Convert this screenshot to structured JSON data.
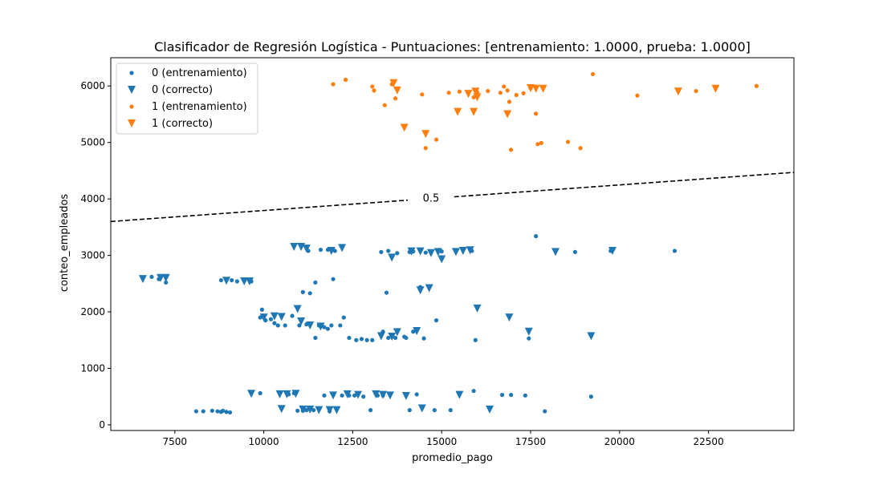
{
  "chart_data": {
    "type": "scatter",
    "title": "Clasificador de Regresión Logística - Puntuaciones: [entrenamiento: 1.0000, prueba: 1.0000]",
    "xlabel": "promedio_pago",
    "ylabel": "conteo_empleados",
    "xlim": [
      5700,
      24900
    ],
    "ylim": [
      -100,
      6500
    ],
    "xticks": [
      7500,
      10000,
      12500,
      15000,
      17500,
      20000,
      22500
    ],
    "yticks": [
      0,
      1000,
      2000,
      3000,
      4000,
      5000,
      6000
    ],
    "decision_boundary": {
      "label": "0.5",
      "points": [
        [
          5700,
          3600
        ],
        [
          24900,
          4470
        ]
      ]
    },
    "legend_position": "upper-left",
    "colors": {
      "class0": "#1f77b4",
      "class1": "#ff7f0e",
      "boundary": "#000000"
    },
    "series": [
      {
        "name": "0 (entrenamiento)",
        "marker": "dot",
        "color": "#1f77b4",
        "points": [
          [
            8100,
            240
          ],
          [
            8300,
            240
          ],
          [
            8550,
            250
          ],
          [
            8700,
            240
          ],
          [
            8800,
            230
          ],
          [
            8850,
            250
          ],
          [
            8950,
            230
          ],
          [
            9050,
            220
          ],
          [
            9900,
            560
          ],
          [
            10700,
            540
          ],
          [
            10850,
            560
          ],
          [
            10950,
            250
          ],
          [
            11100,
            250
          ],
          [
            11200,
            260
          ],
          [
            11400,
            260
          ],
          [
            11700,
            520
          ],
          [
            11850,
            240
          ],
          [
            12200,
            520
          ],
          [
            12400,
            520
          ],
          [
            12550,
            520
          ],
          [
            12800,
            500
          ],
          [
            13000,
            260
          ],
          [
            13200,
            520
          ],
          [
            13350,
            520
          ],
          [
            14100,
            260
          ],
          [
            14300,
            540
          ],
          [
            14800,
            260
          ],
          [
            15250,
            260
          ],
          [
            15900,
            600
          ],
          [
            16700,
            530
          ],
          [
            16950,
            530
          ],
          [
            17350,
            520
          ],
          [
            17900,
            240
          ],
          [
            19200,
            500
          ],
          [
            9900,
            1900
          ],
          [
            9950,
            2040
          ],
          [
            10050,
            1850
          ],
          [
            10200,
            1870
          ],
          [
            10300,
            1800
          ],
          [
            10400,
            1760
          ],
          [
            10600,
            1760
          ],
          [
            10800,
            1930
          ],
          [
            11000,
            1760
          ],
          [
            11200,
            1780
          ],
          [
            11450,
            1540
          ],
          [
            11550,
            1760
          ],
          [
            11700,
            1730
          ],
          [
            11800,
            1700
          ],
          [
            11900,
            1760
          ],
          [
            12150,
            1760
          ],
          [
            12250,
            1900
          ],
          [
            12400,
            1540
          ],
          [
            12600,
            1500
          ],
          [
            12750,
            1520
          ],
          [
            12900,
            1500
          ],
          [
            13050,
            1500
          ],
          [
            13350,
            1650
          ],
          [
            13500,
            1540
          ],
          [
            13700,
            1540
          ],
          [
            13950,
            1560
          ],
          [
            14000,
            1540
          ],
          [
            14200,
            1650
          ],
          [
            14500,
            1530
          ],
          [
            14850,
            1850
          ],
          [
            15950,
            1500
          ],
          [
            17450,
            1530
          ],
          [
            11100,
            2350
          ],
          [
            11300,
            2330
          ],
          [
            11450,
            2520
          ],
          [
            11950,
            2580
          ],
          [
            13450,
            2340
          ],
          [
            14400,
            2440
          ],
          [
            6850,
            2620
          ],
          [
            7050,
            2580
          ],
          [
            7250,
            2520
          ],
          [
            8800,
            2560
          ],
          [
            9100,
            2560
          ],
          [
            9250,
            2540
          ],
          [
            9650,
            2540
          ],
          [
            11250,
            3080
          ],
          [
            11600,
            3100
          ],
          [
            11800,
            3100
          ],
          [
            12000,
            3080
          ],
          [
            13300,
            3060
          ],
          [
            13500,
            3080
          ],
          [
            13750,
            3040
          ],
          [
            14100,
            3060
          ],
          [
            14200,
            3070
          ],
          [
            14550,
            3050
          ],
          [
            15000,
            3070
          ],
          [
            15850,
            3080
          ],
          [
            17650,
            3340
          ],
          [
            18750,
            3060
          ],
          [
            19750,
            3080
          ],
          [
            21550,
            3080
          ]
        ]
      },
      {
        "name": "0 (correcto)",
        "marker": "triangle",
        "color": "#1f77b4",
        "points": [
          [
            6600,
            2580
          ],
          [
            7100,
            2600
          ],
          [
            7250,
            2600
          ],
          [
            8950,
            2550
          ],
          [
            9450,
            2540
          ],
          [
            9600,
            2540
          ],
          [
            10850,
            3150
          ],
          [
            11050,
            3150
          ],
          [
            11200,
            3120
          ],
          [
            11900,
            3080
          ],
          [
            12200,
            3130
          ],
          [
            13600,
            2960
          ],
          [
            14150,
            3070
          ],
          [
            14400,
            3070
          ],
          [
            14700,
            3040
          ],
          [
            14900,
            3060
          ],
          [
            15000,
            2930
          ],
          [
            15400,
            3060
          ],
          [
            15600,
            3080
          ],
          [
            15800,
            3090
          ],
          [
            18200,
            3060
          ],
          [
            19800,
            3080
          ],
          [
            14400,
            2380
          ],
          [
            14650,
            2420
          ],
          [
            16000,
            2060
          ],
          [
            16900,
            1900
          ],
          [
            17450,
            1650
          ],
          [
            19200,
            1570
          ],
          [
            10000,
            1900
          ],
          [
            10300,
            1920
          ],
          [
            10500,
            1910
          ],
          [
            10950,
            2050
          ],
          [
            11050,
            1830
          ],
          [
            11300,
            1760
          ],
          [
            11600,
            1740
          ],
          [
            13300,
            1570
          ],
          [
            13600,
            1560
          ],
          [
            13750,
            1640
          ],
          [
            14300,
            1660
          ],
          [
            9650,
            550
          ],
          [
            10450,
            540
          ],
          [
            10650,
            540
          ],
          [
            10900,
            550
          ],
          [
            11950,
            520
          ],
          [
            12350,
            540
          ],
          [
            12650,
            530
          ],
          [
            13150,
            540
          ],
          [
            13350,
            530
          ],
          [
            13550,
            520
          ],
          [
            14000,
            510
          ],
          [
            15500,
            530
          ],
          [
            10500,
            280
          ],
          [
            11100,
            270
          ],
          [
            11300,
            270
          ],
          [
            11550,
            260
          ],
          [
            11850,
            260
          ],
          [
            12050,
            260
          ],
          [
            14450,
            290
          ],
          [
            16350,
            270
          ]
        ]
      },
      {
        "name": "1 (entrenamiento)",
        "marker": "dot",
        "color": "#ff7f0e",
        "points": [
          [
            11950,
            6030
          ],
          [
            12300,
            6110
          ],
          [
            13050,
            5990
          ],
          [
            13100,
            5920
          ],
          [
            13400,
            5660
          ],
          [
            13600,
            6030
          ],
          [
            13700,
            5780
          ],
          [
            14450,
            5850
          ],
          [
            14550,
            4900
          ],
          [
            14850,
            5050
          ],
          [
            15200,
            5880
          ],
          [
            15500,
            5900
          ],
          [
            15900,
            5800
          ],
          [
            16000,
            5890
          ],
          [
            16300,
            5910
          ],
          [
            16650,
            5880
          ],
          [
            16750,
            5990
          ],
          [
            16900,
            5720
          ],
          [
            17100,
            5840
          ],
          [
            17300,
            5870
          ],
          [
            17500,
            5960
          ],
          [
            17650,
            5510
          ],
          [
            17700,
            4970
          ],
          [
            17800,
            4990
          ],
          [
            18550,
            5010
          ],
          [
            18900,
            4900
          ],
          [
            19250,
            6210
          ],
          [
            20500,
            5830
          ],
          [
            22150,
            5910
          ],
          [
            23850,
            6000
          ],
          [
            16950,
            4870
          ],
          [
            16850,
            5920
          ]
        ]
      },
      {
        "name": "1 (correcto)",
        "marker": "triangle",
        "color": "#ff7f0e",
        "points": [
          [
            13650,
            6050
          ],
          [
            13750,
            5920
          ],
          [
            13950,
            5260
          ],
          [
            14550,
            5150
          ],
          [
            15450,
            5540
          ],
          [
            15750,
            5860
          ],
          [
            15900,
            5540
          ],
          [
            15950,
            5900
          ],
          [
            16000,
            5800
          ],
          [
            16850,
            5500
          ],
          [
            17500,
            5960
          ],
          [
            17650,
            5950
          ],
          [
            17850,
            5950
          ],
          [
            21650,
            5900
          ],
          [
            22700,
            5950
          ]
        ]
      }
    ]
  }
}
